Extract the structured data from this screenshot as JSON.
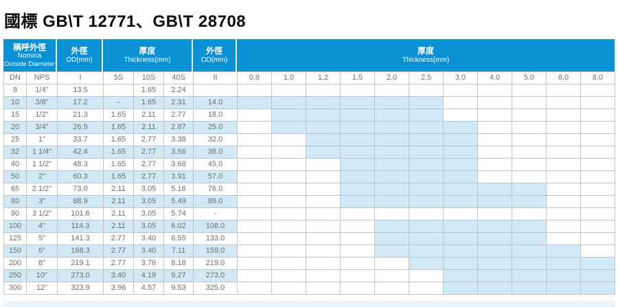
{
  "title": "國標 GB\\T 12771、GB\\T 28708",
  "colors": {
    "header_blue": "#0991d4",
    "row_highlight": "#cfe9f7",
    "grid_line": "#c3c3c3",
    "data_text": "#6d6d6d"
  },
  "header": {
    "groups": [
      {
        "zh": "稱呼外徑",
        "en": [
          "Nomina",
          "Outside Diameter"
        ]
      },
      {
        "zh": "外徑",
        "en": [
          "OD(mm)"
        ]
      },
      {
        "zh": "厚度",
        "en": [
          "Thickness(mm)"
        ]
      },
      {
        "zh": "外徑",
        "en": [
          "OD(mm)"
        ]
      },
      {
        "zh": "厚度",
        "en": [
          "Thickness(mm)"
        ]
      }
    ],
    "left_subheaders": [
      "DN",
      "NPS",
      "I",
      "5S",
      "10S",
      "40S",
      "II"
    ],
    "thickness_values": [
      "0.8",
      "1.0",
      "1.2",
      "1.5",
      "2.0",
      "2.5",
      "3.0",
      "4.0",
      "5.0",
      "6.0",
      "8.0"
    ]
  },
  "rows": [
    {
      "cells": [
        "8",
        "1/4\"",
        "13.5",
        "",
        "1.65",
        "2.24",
        ""
      ],
      "striped": false,
      "hl": null
    },
    {
      "cells": [
        "10",
        "3/8\"",
        "17.2",
        "-",
        "1.65",
        "2.31",
        "14.0"
      ],
      "striped": true,
      "hl": [
        0,
        5
      ]
    },
    {
      "cells": [
        "15",
        "1/2\"",
        "21.3",
        "1.65",
        "2.11",
        "2.77",
        "18.0"
      ],
      "striped": false,
      "hl": [
        1,
        5
      ]
    },
    {
      "cells": [
        "20",
        "3/4\"",
        "26.9",
        "1.65",
        "2.11",
        "2.87",
        "25.0"
      ],
      "striped": true,
      "hl": [
        1,
        6
      ]
    },
    {
      "cells": [
        "25",
        "1\"",
        "33.7",
        "1.65",
        "2.77",
        "3.38",
        "32.0"
      ],
      "striped": false,
      "hl": [
        2,
        6
      ]
    },
    {
      "cells": [
        "32",
        "1 1/4\"",
        "42.4",
        "1.65",
        "2.77",
        "3.56",
        "38.0"
      ],
      "striped": true,
      "hl": [
        2,
        6
      ]
    },
    {
      "cells": [
        "40",
        "1 1/2\"",
        "48.3",
        "1.65",
        "2.77",
        "3.68",
        "45.0"
      ],
      "striped": false,
      "hl": [
        3,
        6
      ]
    },
    {
      "cells": [
        "50",
        "2\"",
        "60.3",
        "1.65",
        "2.77",
        "3.91",
        "57.0"
      ],
      "striped": true,
      "hl": [
        3,
        6
      ]
    },
    {
      "cells": [
        "65",
        "2 1/2\"",
        "73.0",
        "2.11",
        "3.05",
        "5.16",
        "76.0"
      ],
      "striped": false,
      "hl": [
        3,
        8
      ]
    },
    {
      "cells": [
        "80",
        "3\"",
        "88.9",
        "2.11",
        "3.05",
        "5.49",
        "89.0"
      ],
      "striped": true,
      "hl": [
        3,
        8
      ]
    },
    {
      "cells": [
        "90",
        "3 1/2\"",
        "101.6",
        "2.11",
        "3.05",
        "5.74",
        "-"
      ],
      "striped": false,
      "hl": null
    },
    {
      "cells": [
        "100",
        "4\"",
        "114.3",
        "2.11",
        "3.05",
        "6.02",
        "108.0"
      ],
      "striped": true,
      "hl": [
        4,
        8
      ]
    },
    {
      "cells": [
        "125",
        "5\"",
        "141.3",
        "2.77",
        "3.40",
        "6.55",
        "133.0"
      ],
      "striped": false,
      "hl": [
        4,
        8
      ]
    },
    {
      "cells": [
        "150",
        "6\"",
        "168.3",
        "2.77",
        "3.40",
        "7.11",
        "159.0"
      ],
      "striped": true,
      "hl": [
        4,
        9
      ]
    },
    {
      "cells": [
        "200",
        "8\"",
        "219.1",
        "2.77",
        "3.76",
        "8.18",
        "219.0"
      ],
      "striped": false,
      "hl": [
        5,
        10
      ]
    },
    {
      "cells": [
        "250",
        "10\"",
        "273.0",
        "3.40",
        "4.19",
        "9.27",
        "273.0"
      ],
      "striped": true,
      "hl": [
        6,
        10
      ]
    },
    {
      "cells": [
        "300",
        "12\"",
        "323.9",
        "3.96",
        "4.57",
        "9.53",
        "325.0"
      ],
      "striped": false,
      "hl": [
        6,
        10
      ]
    }
  ]
}
